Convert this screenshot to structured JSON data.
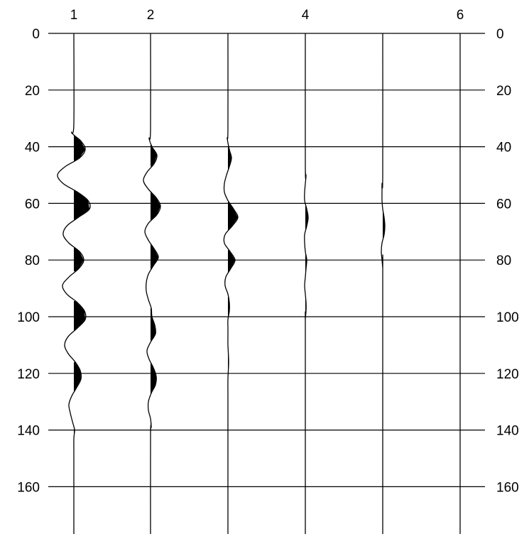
{
  "chart_data": {
    "type": "line",
    "title": "",
    "xlabel": "",
    "ylabel": "",
    "top_tick_labels": [
      "1",
      "2",
      "4",
      "6"
    ],
    "y_ticks": [
      0,
      20,
      40,
      60,
      80,
      100,
      120,
      140,
      160
    ],
    "y_tick_labels": [
      "0",
      "20",
      "40",
      "60",
      "80",
      "100",
      "120",
      "140",
      "160"
    ],
    "ylim": [
      0,
      180
    ],
    "y_axis_inverted": true,
    "grid": "horizontal",
    "fill_positive_lobes": true,
    "line_color": "#000000",
    "series": [
      {
        "trace": 1,
        "points": [
          [
            0,
            0
          ],
          [
            32,
            0
          ],
          [
            35,
            -0.03
          ],
          [
            38,
            0.1
          ],
          [
            41,
            0.16
          ],
          [
            44,
            0.08
          ],
          [
            47,
            -0.12
          ],
          [
            50,
            -0.23
          ],
          [
            53,
            -0.15
          ],
          [
            56,
            0.05
          ],
          [
            59,
            0.2
          ],
          [
            62,
            0.22
          ],
          [
            65,
            0.06
          ],
          [
            68,
            -0.1
          ],
          [
            71,
            -0.15
          ],
          [
            74,
            -0.07
          ],
          [
            77,
            0.08
          ],
          [
            80,
            0.14
          ],
          [
            83,
            0.07
          ],
          [
            86,
            -0.07
          ],
          [
            89,
            -0.16
          ],
          [
            92,
            -0.1
          ],
          [
            95,
            0.05
          ],
          [
            98,
            0.15
          ],
          [
            101,
            0.16
          ],
          [
            104,
            0.05
          ],
          [
            107,
            -0.08
          ],
          [
            110,
            -0.13
          ],
          [
            113,
            -0.08
          ],
          [
            116,
            0.02
          ],
          [
            119,
            0.09
          ],
          [
            122,
            0.1
          ],
          [
            125,
            0.04
          ],
          [
            128,
            -0.03
          ],
          [
            131,
            -0.07
          ],
          [
            134,
            -0.05
          ],
          [
            137,
            -0.02
          ],
          [
            140,
            0.01
          ],
          [
            143,
            0
          ],
          [
            150,
            0
          ],
          [
            180,
            0
          ]
        ]
      },
      {
        "trace": 2,
        "points": [
          [
            0,
            0
          ],
          [
            34,
            0
          ],
          [
            37,
            -0.02
          ],
          [
            40,
            0.02
          ],
          [
            43,
            0.09
          ],
          [
            46,
            0.05
          ],
          [
            49,
            -0.05
          ],
          [
            52,
            -0.1
          ],
          [
            55,
            -0.03
          ],
          [
            58,
            0.08
          ],
          [
            61,
            0.14
          ],
          [
            64,
            0.09
          ],
          [
            67,
            -0.03
          ],
          [
            70,
            -0.08
          ],
          [
            73,
            -0.03
          ],
          [
            76,
            0.05
          ],
          [
            79,
            0.11
          ],
          [
            82,
            0.04
          ],
          [
            85,
            -0.03
          ],
          [
            88,
            -0.06
          ],
          [
            91,
            -0.06
          ],
          [
            94,
            -0.03
          ],
          [
            97,
            0.01
          ],
          [
            100,
            0.02
          ],
          [
            103,
            0.06
          ],
          [
            106,
            0.07
          ],
          [
            109,
            0
          ],
          [
            112,
            -0.05
          ],
          [
            115,
            -0.02
          ],
          [
            118,
            0.04
          ],
          [
            121,
            0.08
          ],
          [
            124,
            0.07
          ],
          [
            127,
            0.01
          ],
          [
            130,
            -0.03
          ],
          [
            133,
            -0.03
          ],
          [
            136,
            0
          ],
          [
            139,
            0.01
          ],
          [
            142,
            0
          ],
          [
            180,
            0
          ]
        ]
      },
      {
        "trace": 3,
        "points": [
          [
            0,
            0
          ],
          [
            34,
            0
          ],
          [
            37,
            -0.01
          ],
          [
            41,
            0.02
          ],
          [
            44,
            0.05
          ],
          [
            47,
            0.02
          ],
          [
            50,
            -0.02
          ],
          [
            53,
            -0.05
          ],
          [
            56,
            -0.05
          ],
          [
            59,
            0
          ],
          [
            62,
            0.08
          ],
          [
            65,
            0.14
          ],
          [
            68,
            0.06
          ],
          [
            71,
            -0.04
          ],
          [
            74,
            -0.05
          ],
          [
            77,
            0.03
          ],
          [
            80,
            0.1
          ],
          [
            83,
            0.04
          ],
          [
            86,
            -0.03
          ],
          [
            89,
            -0.04
          ],
          [
            92,
            0
          ],
          [
            95,
            0.02
          ],
          [
            98,
            0.02
          ],
          [
            101,
            0
          ],
          [
            104,
            0
          ],
          [
            107,
            0
          ],
          [
            110,
            0
          ],
          [
            116,
            0.01
          ],
          [
            122,
            0
          ],
          [
            128,
            0
          ],
          [
            140,
            0
          ],
          [
            180,
            0
          ]
        ]
      },
      {
        "trace": 4,
        "points": [
          [
            0,
            0
          ],
          [
            47,
            0
          ],
          [
            50,
            0.01
          ],
          [
            53,
            0
          ],
          [
            56,
            -0.01
          ],
          [
            59,
            -0.01
          ],
          [
            62,
            0.02
          ],
          [
            65,
            0.04
          ],
          [
            68,
            0.02
          ],
          [
            71,
            -0.01
          ],
          [
            74,
            -0.01
          ],
          [
            77,
            0
          ],
          [
            80,
            0.02
          ],
          [
            83,
            0.01
          ],
          [
            86,
            0
          ],
          [
            89,
            -0.01
          ],
          [
            92,
            0
          ],
          [
            95,
            0.01
          ],
          [
            98,
            0.01
          ],
          [
            101,
            0
          ],
          [
            105,
            0
          ],
          [
            180,
            0
          ]
        ]
      },
      {
        "trace": 5,
        "points": [
          [
            0,
            0
          ],
          [
            50,
            0
          ],
          [
            53,
            -0.01
          ],
          [
            56,
            -0.01
          ],
          [
            59,
            -0.01
          ],
          [
            62,
            0
          ],
          [
            65,
            0.02
          ],
          [
            68,
            0.03
          ],
          [
            71,
            0.02
          ],
          [
            74,
            -0.01
          ],
          [
            77,
            -0.02
          ],
          [
            80,
            -0.01
          ],
          [
            83,
            0
          ],
          [
            86,
            0
          ],
          [
            180,
            0
          ]
        ]
      },
      {
        "trace": 6,
        "points": [
          [
            0,
            0
          ],
          [
            180,
            0
          ]
        ]
      }
    ]
  }
}
